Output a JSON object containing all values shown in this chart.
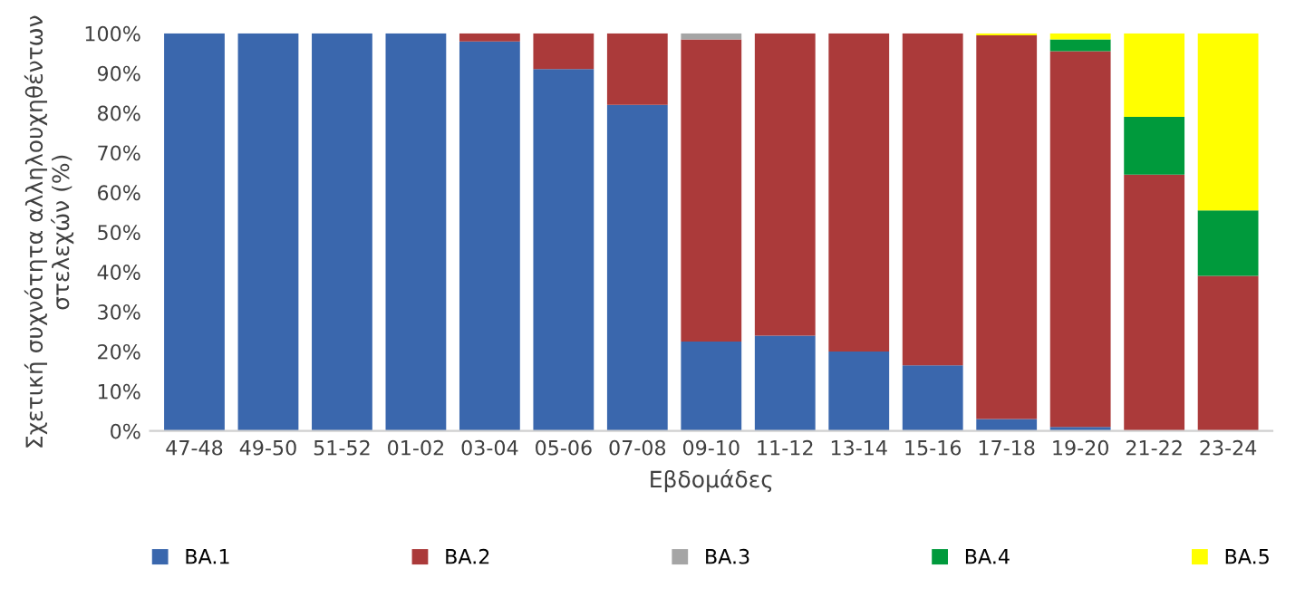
{
  "chart_data": {
    "type": "bar",
    "stacked": true,
    "xlabel": "Εβδομάδες",
    "ylabel": "Σχετική συχνότητα αλληλουχηθέντων στελεχών (%)",
    "categories": [
      "47-48",
      "49-50",
      "51-52",
      "01-02",
      "03-04",
      "05-06",
      "07-08",
      "09-10",
      "11-12",
      "13-14",
      "15-16",
      "17-18",
      "19-20",
      "21-22",
      "23-24"
    ],
    "series": [
      {
        "name": "BA.1",
        "color": "#3a67ad",
        "values": [
          100,
          100,
          100,
          100,
          98,
          91,
          82,
          22.5,
          24,
          20,
          16.5,
          3,
          1,
          0,
          0
        ]
      },
      {
        "name": "BA.2",
        "color": "#ab3a3a",
        "values": [
          0,
          0,
          0,
          0,
          2,
          9,
          18,
          76,
          76,
          80,
          83.5,
          96.5,
          94.5,
          64.5,
          39
        ]
      },
      {
        "name": "BA.3",
        "color": "#a5a5a5",
        "values": [
          0,
          0,
          0,
          0,
          0,
          0,
          0,
          1.5,
          0,
          0,
          0,
          0,
          0,
          0,
          0
        ]
      },
      {
        "name": "BA.4",
        "color": "#009a3c",
        "values": [
          0,
          0,
          0,
          0,
          0,
          0,
          0,
          0,
          0,
          0,
          0,
          0,
          3,
          14.5,
          16.5
        ]
      },
      {
        "name": "BA.5",
        "color": "#ffff00",
        "values": [
          0,
          0,
          0,
          0,
          0,
          0,
          0,
          0,
          0,
          0,
          0,
          0.5,
          1.5,
          21,
          44.5
        ]
      }
    ],
    "ylim": [
      0,
      100
    ],
    "yticks": [
      {
        "value": 0,
        "label": "0%"
      },
      {
        "value": 10,
        "label": "10%"
      },
      {
        "value": 20,
        "label": "20%"
      },
      {
        "value": 30,
        "label": "30%"
      },
      {
        "value": 40,
        "label": "40%"
      },
      {
        "value": 50,
        "label": "50%"
      },
      {
        "value": 60,
        "label": "60%"
      },
      {
        "value": 70,
        "label": "70%"
      },
      {
        "value": 80,
        "label": "80%"
      },
      {
        "value": 90,
        "label": "90%"
      },
      {
        "value": 100,
        "label": "100%"
      }
    ],
    "grid": false,
    "legend": "bottom"
  }
}
